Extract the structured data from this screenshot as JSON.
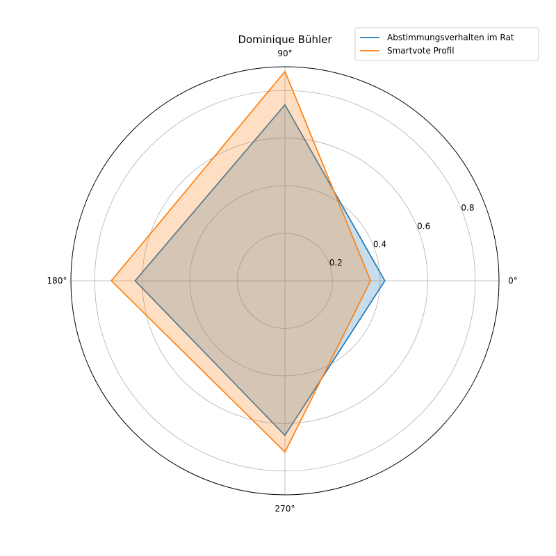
{
  "chart_data": {
    "type": "radar",
    "title": "Dominique Bühler",
    "angle_ticks": [
      "0°",
      "90°",
      "180°",
      "270°"
    ],
    "angles_deg": [
      0,
      90,
      180,
      270
    ],
    "radial_ticks": [
      "0.2",
      "0.4",
      "0.6",
      "0.8"
    ],
    "radial_tick_values": [
      0.2,
      0.4,
      0.6,
      0.8
    ],
    "rlim": [
      0,
      0.9
    ],
    "grid": true,
    "legend_position": "top-right",
    "series": [
      {
        "name": "Abstimmungsverhalten im Rat",
        "color": "#1f77b4",
        "values": [
          0.42,
          0.74,
          0.63,
          0.65
        ]
      },
      {
        "name": "Smartvote Profil",
        "color": "#ff7f0e",
        "values": [
          0.36,
          0.88,
          0.73,
          0.72
        ]
      }
    ]
  }
}
